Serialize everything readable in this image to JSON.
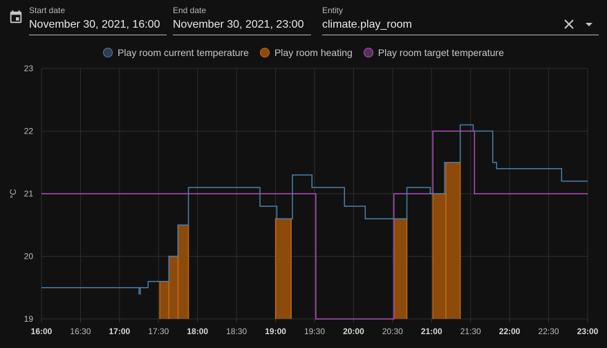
{
  "controls": {
    "start_label": "Start date",
    "start_value": "November 30, 2021, 16:00",
    "end_label": "End date",
    "end_value": "November 30, 2021, 23:00",
    "entity_label": "Entity",
    "entity_value": "climate.play_room"
  },
  "icons": {
    "date": "calendar-icon",
    "clear": "close-icon",
    "dropdown": "arrow-drop-down-icon"
  },
  "colors": {
    "current": "#4d7fa8",
    "heating": "#8c4a0b",
    "heating_border": "#c06a17",
    "target": "#b050b8"
  },
  "chart_data": {
    "type": "line",
    "ylabel": "°C",
    "ylim": [
      19,
      23
    ],
    "y_ticks": [
      "23",
      "22",
      "21",
      "20",
      "19"
    ],
    "x_ticks": [
      {
        "t": "16:00",
        "label": "16:00",
        "bold": true
      },
      {
        "t": "16:30",
        "label": "16:30",
        "bold": false
      },
      {
        "t": "17:00",
        "label": "17:00",
        "bold": true
      },
      {
        "t": "17:30",
        "label": "17:30",
        "bold": false
      },
      {
        "t": "18:00",
        "label": "18:00",
        "bold": true
      },
      {
        "t": "18:30",
        "label": "18:30",
        "bold": false
      },
      {
        "t": "19:00",
        "label": "19:00",
        "bold": true
      },
      {
        "t": "19:30",
        "label": "19:30",
        "bold": false
      },
      {
        "t": "20:00",
        "label": "20:00",
        "bold": true
      },
      {
        "t": "20:30",
        "label": "20:30",
        "bold": false
      },
      {
        "t": "21:00",
        "label": "21:00",
        "bold": true
      },
      {
        "t": "21:30",
        "label": "21:30",
        "bold": false
      },
      {
        "t": "22:00",
        "label": "22:00",
        "bold": true
      },
      {
        "t": "22:30",
        "label": "22:30",
        "bold": false
      },
      {
        "t": "23:00",
        "label": "23:00",
        "bold": true
      }
    ],
    "xlim": [
      "16:00",
      "23:00"
    ],
    "legend": "top-center",
    "grid": true,
    "series": [
      {
        "name": "Play room current temperature",
        "style": "step",
        "points": [
          [
            "16:00",
            19.5
          ],
          [
            "17:14",
            19.5
          ],
          [
            "17:15",
            19.4
          ],
          [
            "17:16",
            19.5
          ],
          [
            "17:22",
            19.6
          ],
          [
            "17:38",
            20.0
          ],
          [
            "17:45",
            20.5
          ],
          [
            "17:53",
            21.1
          ],
          [
            "18:48",
            20.8
          ],
          [
            "19:01",
            20.6
          ],
          [
            "19:13",
            21.3
          ],
          [
            "19:28",
            21.1
          ],
          [
            "19:53",
            20.8
          ],
          [
            "20:09",
            20.6
          ],
          [
            "20:41",
            21.1
          ],
          [
            "20:59",
            21.0
          ],
          [
            "21:10",
            21.5
          ],
          [
            "21:22",
            22.1
          ],
          [
            "21:32",
            22.0
          ],
          [
            "21:47",
            21.5
          ],
          [
            "21:50",
            21.4
          ],
          [
            "22:40",
            21.2
          ],
          [
            "23:00",
            21.2
          ]
        ]
      },
      {
        "name": "Play room heating",
        "style": "area",
        "spans": [
          {
            "from": "17:31",
            "to": "17:38",
            "level": 19.6
          },
          {
            "from": "17:38",
            "to": "17:45",
            "level": 20.0
          },
          {
            "from": "17:45",
            "to": "17:53",
            "level": 20.5
          },
          {
            "from": "19:00",
            "to": "19:12",
            "level": 20.6
          },
          {
            "from": "20:31",
            "to": "20:41",
            "level": 20.6
          },
          {
            "from": "21:01",
            "to": "21:11",
            "level": 21.0
          },
          {
            "from": "21:11",
            "to": "21:22",
            "level": 21.5
          }
        ]
      },
      {
        "name": "Play room target temperature",
        "style": "step",
        "points": [
          [
            "16:00",
            21.0
          ],
          [
            "19:31",
            19.0
          ],
          [
            "20:31",
            21.0
          ],
          [
            "21:01",
            22.0
          ],
          [
            "21:33",
            21.0
          ],
          [
            "23:00",
            21.0
          ]
        ]
      }
    ]
  }
}
